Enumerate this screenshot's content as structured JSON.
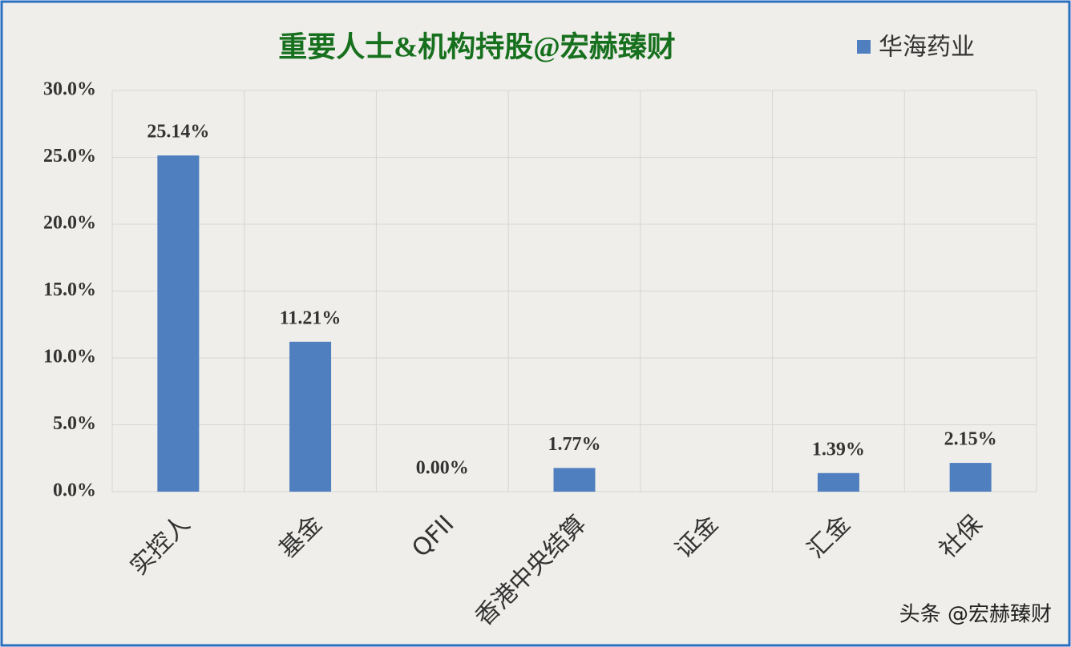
{
  "chart_data": {
    "type": "bar",
    "title": "重要人士&机构持股@宏赫臻财",
    "categories": [
      "实控人",
      "基金",
      "QFII",
      "香港中央结算",
      "证金",
      "汇金",
      "社保"
    ],
    "series": [
      {
        "name": "华海药业",
        "color": "#4f7fbf",
        "values": [
          25.14,
          11.21,
          0.0,
          1.77,
          null,
          1.39,
          2.15
        ],
        "value_labels": [
          "25.14%",
          "11.21%",
          "0.00%",
          "1.77%",
          null,
          "1.39%",
          "2.15%"
        ]
      }
    ],
    "ylim": [
      0,
      30
    ],
    "yticks": [
      {
        "value": 0,
        "label": "0.0%"
      },
      {
        "value": 5,
        "label": "5.0%"
      },
      {
        "value": 10,
        "label": "10.0%"
      },
      {
        "value": 15,
        "label": "15.0%"
      },
      {
        "value": 20,
        "label": "20.0%"
      },
      {
        "value": 25,
        "label": "25.0%"
      },
      {
        "value": 30,
        "label": "30.0%"
      }
    ],
    "grid": true,
    "legend": "top-right",
    "watermark": "头条 @宏赫臻财"
  }
}
